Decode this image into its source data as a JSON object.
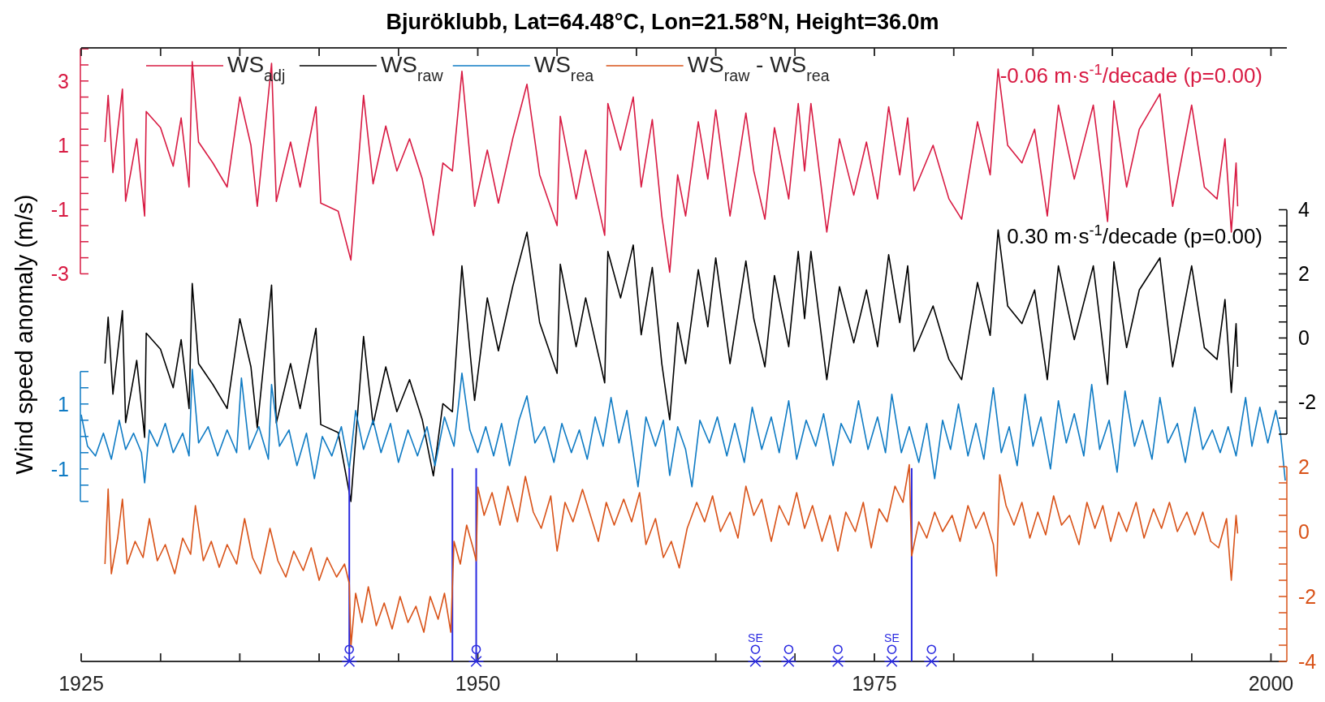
{
  "chart_data": [
    {
      "type": "line",
      "title": "Bjuröklubb, Lat=64.48°C, Lon=21.58°N, Height=36.0m",
      "ylabel": "Wind speed anomaly (m/s)",
      "xlim": [
        1925,
        2001
      ],
      "xticks": [
        1925,
        {
          "value": 1930,
          "label": null
        },
        {
          "value": 1935,
          "label": null
        },
        {
          "value": 1940,
          "label": null
        },
        {
          "value": 1945,
          "label": null
        },
        1950,
        {
          "value": 1955,
          "label": null
        },
        {
          "value": 1960,
          "label": null
        },
        {
          "value": 1965,
          "label": null
        },
        {
          "value": 1970,
          "label": null
        },
        1975,
        {
          "value": 1980,
          "label": null
        },
        {
          "value": 1985,
          "label": null
        },
        {
          "value": 1990,
          "label": null
        },
        {
          "value": 1995,
          "label": null
        },
        2000
      ],
      "ylim": [
        -15.06,
        4.03
      ],
      "yticks": [
        -3,
        {
          "value": -2.5,
          "label": null
        },
        {
          "value": -2,
          "label": null
        },
        {
          "value": -1.5,
          "label": null
        },
        -1,
        {
          "value": -0.5,
          "label": null
        },
        {
          "value": 0,
          "label": null
        },
        {
          "value": 0.5,
          "label": null
        },
        1,
        {
          "value": 1.5,
          "label": null
        },
        {
          "value": 2,
          "label": null
        },
        {
          "value": 2.5,
          "label": null
        },
        3,
        {
          "value": 3.5,
          "label": null
        },
        {
          "value": 4,
          "label": null
        }
      ],
      "y2lim": [
        -10.09,
        9.05
      ],
      "y2ticks": [
        {
          "value": -3,
          "label": null
        },
        {
          "value": -2.5,
          "label": null
        },
        -2,
        {
          "value": -1.5,
          "label": null
        },
        {
          "value": -1,
          "label": null
        },
        {
          "value": -0.5,
          "label": null
        },
        0,
        {
          "value": 0.5,
          "label": null
        },
        {
          "value": 1,
          "label": null
        },
        {
          "value": 1.5,
          "label": null
        },
        2,
        {
          "value": 2.5,
          "label": null
        },
        {
          "value": 3,
          "label": null
        },
        {
          "value": 3.5,
          "label": null
        },
        4
      ],
      "y3lim": [
        -6.93,
        11.97
      ],
      "y3ticks": [
        {
          "value": -2,
          "label": null
        },
        {
          "value": -1.5,
          "label": null
        },
        -1,
        {
          "value": -0.5,
          "label": null
        },
        {
          "value": 0,
          "label": null
        },
        {
          "value": 0.5,
          "label": null
        },
        1,
        {
          "value": 1.5,
          "label": null
        },
        {
          "value": 2,
          "label": null
        }
      ],
      "legend": "top",
      "series": [
        {
          "name": "WS$_{adj}$",
          "color": "#d81b43",
          "x": [
            1926.5,
            1926.7,
            1927.0,
            1927.6,
            1927.8,
            1928.5,
            1929.0,
            1929.1,
            1930.0,
            1930.8,
            1931.3,
            1931.8,
            1932.0,
            1932.4,
            1933.3,
            1934.2,
            1935.0,
            1935.7,
            1936.1,
            1937.0,
            1937.3,
            1938.2,
            1938.8,
            1939.8,
            1940.1,
            1941.2,
            1942.0,
            1942.8,
            1943.4,
            1944.2,
            1944.9,
            1945.7,
            1946.5,
            1947.2,
            1947.8,
            1948.4,
            1949.0,
            1949.8,
            1950.6,
            1951.3,
            1952.2,
            1953.1,
            1953.9,
            1955.0,
            1955.2,
            1956.2,
            1956.8,
            1958.0,
            1958.2,
            1959.0,
            1959.8,
            1960.3,
            1961.0,
            1961.6,
            1962.1,
            1962.6,
            1963.1,
            1963.9,
            1964.5,
            1965.0,
            1965.9,
            1966.9,
            1967.4,
            1968.1,
            1968.7,
            1969.6,
            1970.2,
            1970.6,
            1971.0,
            1972.0,
            1972.8,
            1973.7,
            1974.5,
            1975.2,
            1975.9,
            1976.6,
            1977.1,
            1977.5,
            1978.7,
            1979.7,
            1980.5,
            1981.5,
            1982.3,
            1982.8,
            1983.4,
            1984.3,
            1985.1,
            1985.9,
            1986.6,
            1987.6,
            1988.8,
            1989.7,
            1990.1,
            1990.9,
            1991.7,
            1993.0,
            1993.8,
            1995.0,
            1995.8,
            1996.6,
            1997.1,
            1997.5,
            1997.8,
            1997.9
          ],
          "values": [
            1.1,
            2.55,
            0.15,
            2.75,
            -0.74,
            1.2,
            -1.2,
            2.05,
            1.55,
            0.35,
            1.85,
            -0.3,
            3.6,
            1.1,
            0.45,
            -0.3,
            2.5,
            1.0,
            -0.9,
            3.55,
            -0.75,
            1.1,
            -0.3,
            2.2,
            -0.8,
            -1.05,
            -2.57,
            2.55,
            -0.2,
            1.6,
            0.2,
            1.2,
            -0.05,
            -1.8,
            0.45,
            0.2,
            3.3,
            -0.9,
            0.85,
            -0.8,
            1.2,
            2.9,
            0.08,
            -1.5,
            1.9,
            -0.67,
            0.85,
            -1.8,
            2.3,
            0.85,
            2.5,
            -0.3,
            1.8,
            -1.2,
            -2.95,
            0.08,
            -1.2,
            1.73,
            -0.05,
            2.1,
            -1.2,
            2.0,
            0.2,
            -1.3,
            1.55,
            -0.67,
            2.3,
            0.2,
            2.3,
            -1.7,
            1.2,
            -0.55,
            1.1,
            -0.67,
            2.2,
            0.08,
            1.85,
            -0.42,
            1.0,
            -0.67,
            -1.3,
            1.73,
            0.08,
            3.37,
            1.0,
            0.45,
            1.5,
            -1.2,
            2.25,
            -0.05,
            2.25,
            -1.37,
            2.38,
            -0.3,
            1.5,
            2.6,
            -0.9,
            2.25,
            -0.3,
            -0.67,
            1.2,
            -1.7,
            0.45,
            -0.9
          ]
        },
        {
          "name": "WS$_{raw}$",
          "color": "#000000",
          "axis": "y2",
          "x": [
            1926.5,
            1926.7,
            1927.0,
            1927.6,
            1927.8,
            1928.5,
            1929.0,
            1929.1,
            1930.0,
            1930.8,
            1931.3,
            1931.8,
            1932.0,
            1932.4,
            1933.3,
            1934.2,
            1935.0,
            1935.7,
            1936.1,
            1937.0,
            1937.3,
            1938.2,
            1938.8,
            1939.8,
            1940.1,
            1941.2,
            1942.0,
            1942.8,
            1943.4,
            1944.2,
            1944.9,
            1945.7,
            1946.5,
            1947.2,
            1947.8,
            1948.4,
            1949.0,
            1949.8,
            1950.6,
            1951.3,
            1952.2,
            1953.1,
            1953.9,
            1955.0,
            1955.2,
            1956.2,
            1956.8,
            1958.0,
            1958.2,
            1959.0,
            1959.8,
            1960.3,
            1961.0,
            1961.6,
            1962.1,
            1962.6,
            1963.1,
            1963.9,
            1964.5,
            1965.0,
            1965.9,
            1966.9,
            1967.4,
            1968.1,
            1968.7,
            1969.6,
            1970.2,
            1970.6,
            1971.0,
            1972.0,
            1972.8,
            1973.7,
            1974.5,
            1975.2,
            1975.9,
            1976.6,
            1977.1,
            1977.5,
            1978.7,
            1979.7,
            1980.5,
            1981.5,
            1982.3,
            1982.8,
            1983.4,
            1984.3,
            1985.1,
            1985.9,
            1986.6,
            1987.6,
            1988.8,
            1989.7,
            1990.1,
            1990.9,
            1991.7,
            1993.0,
            1993.8,
            1995.0,
            1995.8,
            1996.6,
            1997.1,
            1997.5,
            1997.8,
            1997.9
          ],
          "values": [
            -0.8,
            0.65,
            -1.75,
            0.85,
            -2.64,
            -0.7,
            -3.1,
            0.15,
            -0.35,
            -1.55,
            -0.05,
            -2.2,
            1.7,
            -0.8,
            -1.45,
            -2.2,
            0.6,
            -0.9,
            -2.8,
            1.65,
            -2.65,
            -0.8,
            -2.2,
            0.3,
            -2.7,
            -2.95,
            -5.1,
            0.05,
            -2.7,
            -0.9,
            -2.3,
            -1.3,
            -2.55,
            -4.3,
            -2.05,
            -2.3,
            2.25,
            -1.95,
            1.25,
            -0.4,
            1.6,
            3.3,
            0.48,
            -1.1,
            2.3,
            -0.27,
            1.25,
            -1.4,
            2.7,
            1.25,
            2.9,
            0.1,
            2.2,
            -0.8,
            -2.55,
            0.48,
            -0.8,
            2.13,
            0.35,
            2.5,
            -0.8,
            2.4,
            0.6,
            -0.9,
            1.95,
            -0.27,
            2.7,
            0.6,
            2.7,
            -1.3,
            1.6,
            -0.15,
            1.5,
            -0.27,
            2.6,
            0.48,
            2.25,
            -0.42,
            1.0,
            -0.67,
            -1.3,
            1.73,
            0.08,
            3.37,
            1.0,
            0.45,
            1.5,
            -1.3,
            2.25,
            -0.05,
            2.25,
            -1.45,
            2.38,
            -0.3,
            1.5,
            2.5,
            -0.9,
            2.25,
            -0.3,
            -0.67,
            1.2,
            -1.7,
            0.45,
            -0.9
          ]
        },
        {
          "name": "WS$_{rea}$",
          "color": "#0f7bc4",
          "axis": "y3",
          "x": [
            1925.0,
            1925.4,
            1925.9,
            1926.4,
            1926.9,
            1927.4,
            1927.8,
            1928.3,
            1928.8,
            1929.0,
            1929.3,
            1929.8,
            1930.3,
            1930.8,
            1931.4,
            1931.8,
            1932.0,
            1932.4,
            1933.0,
            1933.6,
            1934.2,
            1934.8,
            1935.1,
            1935.6,
            1936.2,
            1936.8,
            1937.0,
            1937.5,
            1938.1,
            1938.6,
            1939.2,
            1939.7,
            1940.2,
            1940.8,
            1941.4,
            1941.9,
            1942.3,
            1942.8,
            1943.4,
            1943.9,
            1944.5,
            1945.0,
            1945.6,
            1946.2,
            1946.8,
            1947.3,
            1947.9,
            1948.5,
            1949.0,
            1949.5,
            1950.0,
            1950.5,
            1951.0,
            1951.5,
            1952.0,
            1952.6,
            1953.1,
            1953.6,
            1954.2,
            1954.8,
            1955.3,
            1955.9,
            1956.4,
            1956.9,
            1957.4,
            1957.9,
            1958.4,
            1958.9,
            1959.4,
            1960.1,
            1960.6,
            1961.2,
            1961.7,
            1962.1,
            1962.6,
            1963.1,
            1963.5,
            1964.0,
            1964.6,
            1965.1,
            1965.7,
            1966.2,
            1966.8,
            1967.3,
            1967.9,
            1968.5,
            1969.0,
            1969.6,
            1970.1,
            1970.7,
            1971.3,
            1971.8,
            1972.4,
            1972.9,
            1973.5,
            1974.0,
            1974.6,
            1975.2,
            1975.7,
            1976.1,
            1976.7,
            1977.2,
            1977.8,
            1978.3,
            1978.8,
            1979.3,
            1979.8,
            1980.3,
            1980.9,
            1981.4,
            1981.9,
            1982.5,
            1983.0,
            1983.5,
            1984.0,
            1984.5,
            1985.0,
            1985.5,
            1986.1,
            1986.6,
            1987.1,
            1987.6,
            1988.2,
            1988.7,
            1989.2,
            1989.8,
            1990.3,
            1990.8,
            1991.4,
            1991.9,
            1992.5,
            1993.0,
            1993.5,
            1994.1,
            1994.6,
            1995.2,
            1995.7,
            1996.3,
            1996.8,
            1997.3,
            1997.8,
            1998.4,
            1998.8,
            1999.3,
            1999.8,
            2000.3,
            2000.6,
            2000.9
          ],
          "values": [
            0.67,
            -0.3,
            -0.6,
            0.1,
            -0.7,
            0.5,
            -0.4,
            0.1,
            -0.5,
            -1.43,
            0.2,
            -0.3,
            0.4,
            -0.5,
            0.1,
            -0.6,
            2.07,
            -0.2,
            0.3,
            -0.6,
            0.2,
            -0.5,
            1.8,
            -0.4,
            0.3,
            -0.7,
            1.6,
            -0.3,
            0.2,
            -0.9,
            0.1,
            -1.3,
            0.0,
            -0.6,
            0.3,
            -1.0,
            0.8,
            -0.4,
            0.5,
            -0.5,
            0.4,
            -0.8,
            0.2,
            -0.6,
            0.3,
            -0.9,
            0.6,
            -0.3,
            1.95,
            0.2,
            -0.5,
            0.3,
            -0.6,
            0.4,
            -0.9,
            0.5,
            1.25,
            -0.2,
            0.3,
            -0.8,
            0.4,
            -0.5,
            0.2,
            -0.7,
            0.6,
            -0.3,
            1.2,
            -0.2,
            0.8,
            -1.55,
            0.6,
            -0.3,
            0.5,
            -1.2,
            0.3,
            -0.4,
            -1.55,
            0.5,
            -0.2,
            0.6,
            -0.6,
            0.4,
            -0.8,
            0.9,
            -0.4,
            0.6,
            -0.5,
            1.1,
            -0.7,
            0.5,
            -0.3,
            0.7,
            -0.9,
            0.4,
            -0.2,
            1.1,
            -0.4,
            0.6,
            -0.5,
            1.3,
            -0.5,
            0.3,
            -0.8,
            0.4,
            -1.3,
            0.5,
            -0.4,
            1.0,
            -0.6,
            0.4,
            -0.7,
            1.5,
            -0.5,
            0.3,
            -0.9,
            1.3,
            -0.3,
            0.6,
            -1.0,
            1.1,
            -0.2,
            0.7,
            -0.6,
            1.6,
            -0.4,
            0.5,
            -1.1,
            1.4,
            -0.3,
            0.5,
            -0.7,
            1.2,
            -0.2,
            0.4,
            -0.8,
            0.9,
            -0.4,
            0.2,
            -0.5,
            0.3,
            -0.6,
            1.2,
            -0.3,
            0.9,
            -0.2,
            0.8,
            0.1,
            -1.36
          ]
        }
      ],
      "annotations": [
        "-0.06 m·s$^{-1}$/decade (p=0.00)",
        "0.30 m·s$^{-1}$/decade (p=0.00)"
      ]
    },
    {
      "type": "line",
      "xlim": [
        1925,
        2001
      ],
      "xticks": [
        1925,
        {
          "value": 1930,
          "label": null
        },
        {
          "value": 1935,
          "label": null
        },
        {
          "value": 1940,
          "label": null
        },
        {
          "value": 1945,
          "label": null
        },
        1950,
        {
          "value": 1955,
          "label": null
        },
        {
          "value": 1960,
          "label": null
        },
        {
          "value": 1965,
          "label": null
        },
        {
          "value": 1970,
          "label": null
        },
        1975,
        {
          "value": 1980,
          "label": null
        },
        {
          "value": 1985,
          "label": null
        },
        {
          "value": 1990,
          "label": null
        },
        {
          "value": 1995,
          "label": null
        },
        2000
      ],
      "tick_labels": "y",
      "ylim": [
        -4,
        14.9
      ],
      "yticks": [
        -4,
        {
          "value": -3.5,
          "label": null
        },
        {
          "value": -3,
          "label": null
        },
        {
          "value": -2.5,
          "label": null
        },
        -2,
        {
          "value": -1.5,
          "label": null
        },
        {
          "value": -1,
          "label": null
        },
        {
          "value": -0.5,
          "label": null
        },
        0,
        {
          "value": 0.5,
          "label": null
        },
        {
          "value": 1,
          "label": null
        },
        {
          "value": 1.5,
          "label": null
        },
        2
      ],
      "legend": "top",
      "series": [
        {
          "name": "WS$_{raw}$ - WS$_{rea}$",
          "color": "#d95319",
          "x": [
            1926.5,
            1926.7,
            1926.9,
            1927.3,
            1927.6,
            1927.9,
            1928.4,
            1928.9,
            1929.3,
            1929.8,
            1930.3,
            1930.9,
            1931.4,
            1931.9,
            1932.2,
            1932.7,
            1933.2,
            1933.7,
            1934.2,
            1934.8,
            1935.3,
            1935.8,
            1936.3,
            1936.9,
            1937.4,
            1937.9,
            1938.4,
            1939.0,
            1939.5,
            1940.0,
            1940.5,
            1941.1,
            1941.6,
            1941.9,
            1942.0,
            1942.3,
            1942.7,
            1943.1,
            1943.6,
            1944.1,
            1944.6,
            1945.1,
            1945.6,
            1946.1,
            1946.6,
            1947.0,
            1947.5,
            1947.9,
            1948.3,
            1948.5,
            1948.9,
            1949.3,
            1949.7,
            1949.9,
            1950.0,
            1950.4,
            1950.9,
            1951.4,
            1951.9,
            1952.5,
            1953.0,
            1953.5,
            1954.0,
            1954.6,
            1955.0,
            1955.5,
            1956.0,
            1956.6,
            1957.1,
            1957.6,
            1958.1,
            1958.6,
            1959.2,
            1959.7,
            1960.2,
            1960.6,
            1961.2,
            1961.7,
            1962.2,
            1962.7,
            1963.2,
            1963.8,
            1964.3,
            1964.8,
            1965.3,
            1965.9,
            1966.4,
            1966.9,
            1967.4,
            1967.9,
            1968.5,
            1969.0,
            1969.6,
            1970.1,
            1970.6,
            1971.1,
            1971.7,
            1972.2,
            1972.7,
            1973.2,
            1973.8,
            1974.3,
            1974.8,
            1975.3,
            1975.8,
            1976.3,
            1976.8,
            1977.2,
            1977.35,
            1977.8,
            1978.3,
            1978.8,
            1979.3,
            1979.9,
            1980.4,
            1980.9,
            1981.4,
            1981.9,
            1982.5,
            1982.7,
            1982.9,
            1983.3,
            1983.8,
            1984.3,
            1984.8,
            1985.3,
            1985.8,
            1986.3,
            1986.8,
            1987.3,
            1987.9,
            1988.4,
            1988.9,
            1989.4,
            1989.9,
            1990.4,
            1990.9,
            1991.5,
            1992.0,
            1992.6,
            1993.1,
            1993.6,
            1994.1,
            1994.7,
            1995.2,
            1995.7,
            1996.2,
            1996.7,
            1997.2,
            1997.5,
            1997.8,
            1997.9
          ],
          "values": [
            -1.0,
            1.31,
            -1.3,
            -0.2,
            1.0,
            -1.0,
            -0.3,
            -0.8,
            0.4,
            -0.9,
            -0.4,
            -1.3,
            -0.2,
            -0.7,
            0.8,
            -0.9,
            -0.3,
            -1.1,
            -0.4,
            -1.0,
            0.4,
            -0.8,
            -1.3,
            0.1,
            -0.9,
            -1.4,
            -0.6,
            -1.2,
            -0.5,
            -1.5,
            -0.8,
            -1.4,
            -1.0,
            -1.6,
            -3.56,
            -1.9,
            -2.8,
            -1.7,
            -2.9,
            -2.2,
            -3.0,
            -2.0,
            -2.8,
            -2.3,
            -3.1,
            -2.0,
            -2.7,
            -1.9,
            -3.1,
            -0.3,
            -1.0,
            0.2,
            -0.5,
            -0.9,
            1.37,
            0.5,
            1.2,
            0.2,
            1.4,
            0.3,
            1.7,
            0.6,
            0.1,
            1.1,
            -0.6,
            0.9,
            0.3,
            1.3,
            0.5,
            -0.3,
            0.9,
            0.2,
            1.0,
            0.3,
            1.2,
            -0.4,
            0.4,
            -0.8,
            -0.3,
            -1.12,
            0.1,
            0.9,
            0.3,
            1.1,
            0.0,
            0.6,
            -0.2,
            1.4,
            0.5,
            1.0,
            -0.3,
            0.8,
            0.2,
            1.2,
            0.1,
            0.8,
            -0.3,
            0.5,
            -0.6,
            0.6,
            0.0,
            0.9,
            -0.5,
            0.7,
            0.3,
            1.4,
            0.9,
            2.06,
            -0.75,
            0.3,
            -0.2,
            0.6,
            0.0,
            0.5,
            -0.3,
            0.8,
            0.1,
            0.6,
            -0.4,
            -1.37,
            1.75,
            0.8,
            0.2,
            0.9,
            -0.2,
            0.6,
            -0.1,
            1.1,
            0.2,
            0.5,
            -0.4,
            0.9,
            0.1,
            0.8,
            -0.3,
            0.6,
            0.0,
            0.9,
            -0.2,
            0.7,
            0.1,
            0.9,
            0.0,
            0.6,
            -0.1,
            0.6,
            -0.3,
            -0.5,
            0.4,
            -1.5,
            0.5,
            -0.06
          ]
        },
        {
          "type": "scatter",
          "color": "#2a2ae0",
          "marker": "cross",
          "x": [
            1941.9,
            1949.9,
            1967.5,
            1969.6,
            1972.7,
            1976.1,
            1978.6
          ],
          "values": [
            -4,
            -4,
            -4,
            -4,
            -4,
            -4,
            -4
          ]
        },
        {
          "type": "scatter",
          "color": "#2a2ae0",
          "marker": "circle",
          "x": [
            1941.9,
            1949.9,
            1967.5,
            1969.6,
            1972.7,
            1976.1,
            1978.6
          ],
          "values": [
            -3.63,
            -3.63,
            -3.63,
            -3.63,
            -3.63,
            -3.63,
            -3.63
          ],
          "value_labels": [
            null,
            null,
            "SE",
            null,
            null,
            "SE",
            null
          ]
        }
      ],
      "ref_lines": [
        {
          "axis": "x",
          "value": 1941.9,
          "color": "#2a2ae0"
        },
        {
          "axis": "x",
          "value": 1948.4,
          "color": "#2a2ae0"
        },
        {
          "axis": "x",
          "value": 1949.9,
          "color": "#2a2ae0"
        },
        {
          "axis": "x",
          "value": 1977.35,
          "color": "#2a2ae0"
        }
      ]
    }
  ]
}
